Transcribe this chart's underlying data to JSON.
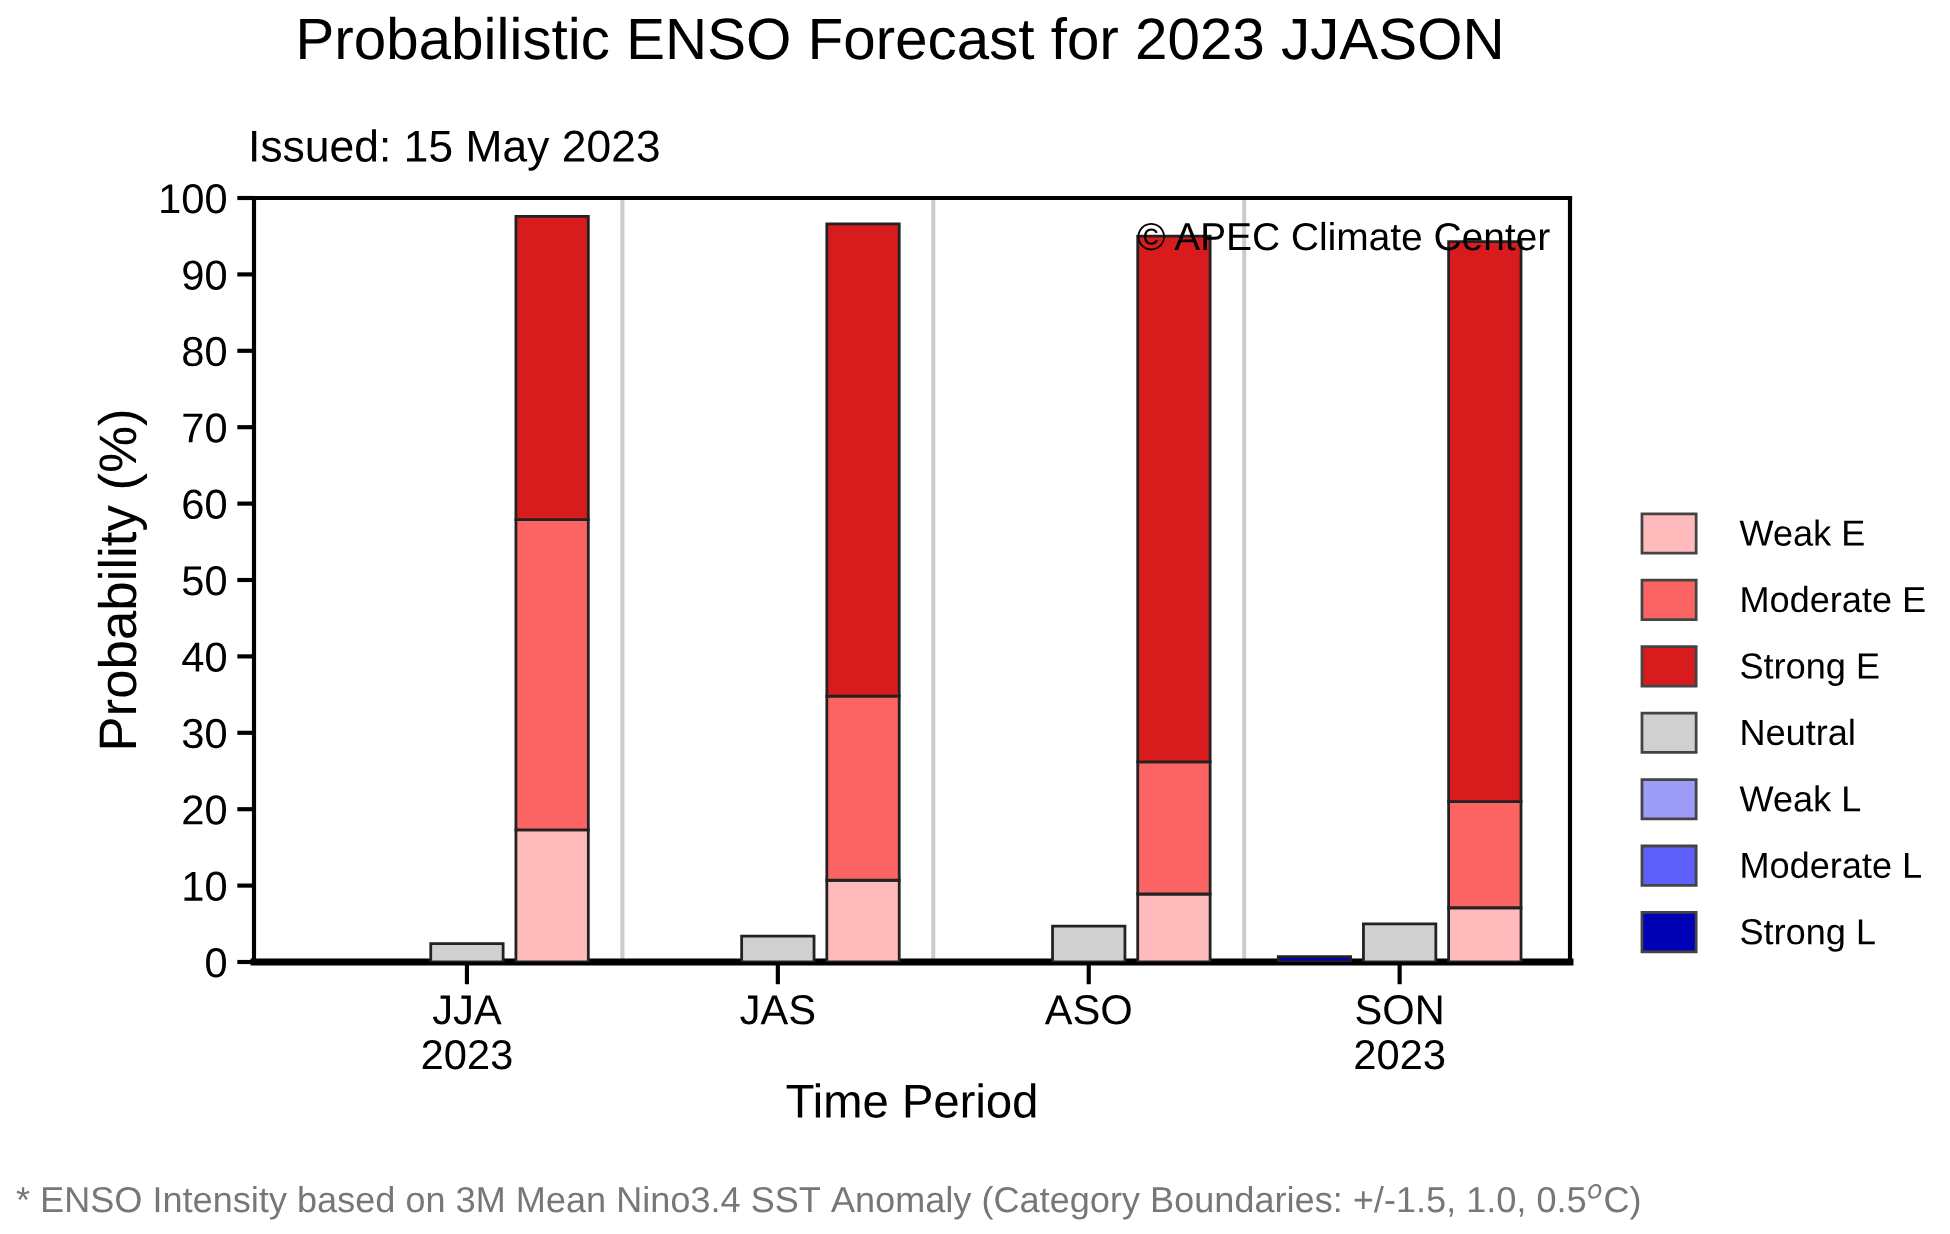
{
  "chart_data": {
    "type": "bar",
    "stacked": true,
    "title": "Probabilistic ENSO Forecast for 2023 JJASON",
    "subtitle": "Issued: 15 May 2023",
    "xlabel": "Time Period",
    "ylabel": "Probability (%)",
    "categories": [
      null,
      "JJA\n2023",
      null,
      null,
      "JAS",
      null,
      null,
      "ASO",
      null,
      null,
      "SON\n2023",
      null
    ],
    "series": [
      {
        "name": "Weak E",
        "color": "#ffbbbb",
        "values": [
          null,
          null,
          17.3,
          null,
          null,
          10.7,
          null,
          null,
          8.9,
          null,
          null,
          7.1
        ]
      },
      {
        "name": "Moderate E",
        "color": "#fc6464",
        "values": [
          null,
          null,
          40.6,
          null,
          null,
          24.1,
          null,
          null,
          17.3,
          null,
          null,
          13.9
        ]
      },
      {
        "name": "Strong E",
        "color": "#d81b1d",
        "values": [
          null,
          null,
          39.7,
          null,
          null,
          61.8,
          null,
          null,
          68.8,
          null,
          null,
          73.3
        ]
      },
      {
        "name": "Neutral",
        "color": "#d0d0d0",
        "values": [
          null,
          2.4,
          null,
          null,
          3.4,
          null,
          null,
          4.7,
          null,
          null,
          5.0,
          null
        ]
      },
      {
        "name": "Weak L",
        "color": "#9c9cf6",
        "values": [
          null,
          null,
          null,
          null,
          null,
          null,
          null,
          null,
          null,
          null,
          null,
          null
        ]
      },
      {
        "name": "Moderate L",
        "color": "#5f5ffa",
        "values": [
          null,
          null,
          null,
          null,
          null,
          null,
          null,
          null,
          null,
          null,
          null,
          null
        ]
      },
      {
        "name": "Strong L",
        "color": "#0000b4",
        "values": [
          null,
          null,
          null,
          null,
          null,
          null,
          null,
          null,
          null,
          0.7,
          null,
          null
        ]
      }
    ],
    "ylim": [
      0,
      100
    ],
    "yticks": [
      0,
      10,
      20,
      30,
      40,
      50,
      60,
      70,
      80,
      90,
      100
    ],
    "grid": false,
    "legend": "right",
    "annotations": [
      "© APEC Climate Center",
      "* ENSO Intensity based on 3M Mean Nino3.4 SST Anomaly (Category Boundaries: +/-1.5, 1.0, 0.5$^{o}$C)"
    ]
  }
}
